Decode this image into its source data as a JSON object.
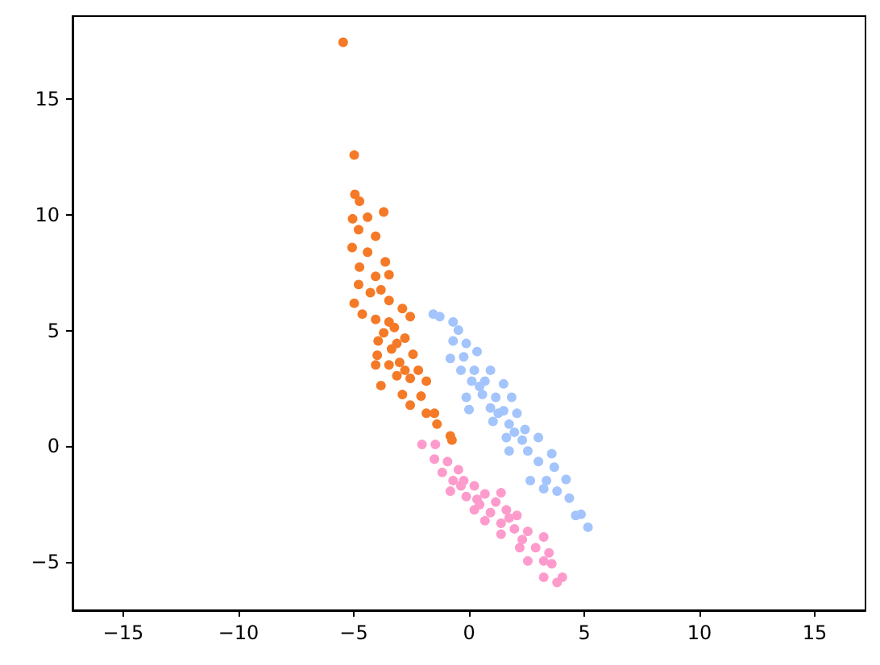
{
  "chart_data": {
    "type": "scatter",
    "marker": "circle",
    "grid": false,
    "xlim": [
      -17.2,
      17.2
    ],
    "ylim": [
      -7.1,
      18.6
    ],
    "xticks": [
      -15,
      -10,
      -5,
      0,
      5,
      10,
      15
    ],
    "yticks": [
      -5,
      0,
      5,
      10,
      15
    ],
    "series": [
      {
        "color": "#a3c4fc",
        "x": [
          -1.55,
          -1.27,
          -0.69,
          -0.46,
          -0.69,
          -0.12,
          0.35,
          -0.81,
          -0.23,
          -0.35,
          0.23,
          0.93,
          0.12,
          0.69,
          1.5,
          -0.12,
          0.58,
          1.16,
          1.85,
          0.0,
          0.93,
          1.5,
          2.08,
          1.04,
          1.74,
          2.43,
          1.62,
          2.31,
          3.01,
          1.74,
          2.55,
          3.59,
          3.01,
          3.7,
          2.66,
          3.36,
          4.21,
          3.82,
          3.24,
          4.35,
          4.63,
          4.86,
          5.16,
          1.27,
          1.97,
          0.46
        ],
        "values": [
          5.71,
          5.6,
          5.37,
          5.02,
          4.55,
          4.44,
          4.09,
          3.79,
          3.86,
          3.28,
          3.28,
          3.28,
          2.81,
          2.81,
          2.69,
          2.11,
          2.23,
          2.11,
          2.11,
          1.58,
          1.65,
          1.53,
          1.42,
          1.07,
          0.95,
          0.72,
          0.37,
          0.26,
          0.37,
          -0.21,
          -0.21,
          -0.33,
          -0.67,
          -0.91,
          -1.49,
          -1.49,
          -1.44,
          -1.95,
          -1.84,
          -2.25,
          -3.0,
          -2.95,
          -3.51,
          1.42,
          0.6,
          2.58
        ]
      },
      {
        "color": "#f47a28",
        "x": [
          -5.46,
          -4.98,
          -4.95,
          -4.75,
          -3.7,
          -5.05,
          -4.4,
          -4.79,
          -4.05,
          -5.07,
          -4.4,
          -3.63,
          -4.75,
          -4.05,
          -3.47,
          -4.79,
          -4.28,
          -3.82,
          -4.98,
          -3.47,
          -2.89,
          -4.63,
          -4.05,
          -2.55,
          -3.24,
          -3.94,
          -2.78,
          -3.36,
          -2.43,
          -3.98,
          -3.01,
          -4.05,
          -2.2,
          -3.13,
          -2.55,
          -3.82,
          -1.85,
          -2.89,
          -2.08,
          -2.55,
          -1.85,
          -1.5,
          -1.39,
          -0.81,
          -0.74,
          -3.47,
          -3.7,
          -3.13,
          -3.47,
          -2.78
        ],
        "values": [
          17.47,
          12.59,
          10.89,
          10.59,
          10.13,
          9.83,
          9.9,
          9.36,
          9.08,
          8.59,
          8.39,
          7.97,
          7.74,
          7.34,
          7.41,
          6.99,
          6.64,
          6.76,
          6.18,
          6.3,
          5.95,
          5.71,
          5.48,
          5.6,
          5.13,
          4.55,
          4.67,
          4.2,
          3.97,
          3.93,
          3.62,
          3.51,
          3.28,
          3.04,
          2.93,
          2.62,
          2.81,
          2.23,
          2.16,
          1.77,
          1.42,
          1.42,
          0.95,
          0.44,
          0.26,
          5.37,
          4.9,
          4.44,
          3.51,
          3.28
        ]
      },
      {
        "color": "#fd9bcc",
        "x": [
          -2.04,
          -1.46,
          -1.5,
          -0.93,
          -1.16,
          -0.46,
          -0.81,
          -0.23,
          -0.69,
          0.23,
          -0.12,
          0.69,
          0.46,
          1.16,
          1.39,
          0.23,
          0.93,
          1.62,
          2.08,
          0.69,
          1.39,
          1.97,
          2.55,
          1.39,
          2.31,
          3.24,
          2.2,
          2.89,
          3.47,
          2.55,
          3.24,
          3.59,
          3.24,
          3.82,
          4.05,
          0.35,
          1.74,
          -0.35
        ],
        "values": [
          0.07,
          0.07,
          -0.56,
          -0.67,
          -1.14,
          -1.02,
          -1.95,
          -1.49,
          -1.49,
          -1.72,
          -2.18,
          -2.07,
          -2.53,
          -2.42,
          -2.02,
          -2.76,
          -2.88,
          -2.76,
          -3.0,
          -3.23,
          -3.34,
          -3.58,
          -3.69,
          -3.81,
          -4.04,
          -3.93,
          -4.39,
          -4.39,
          -4.62,
          -4.97,
          -4.97,
          -5.09,
          -5.67,
          -5.9,
          -5.67,
          -2.3,
          -3.11,
          -1.72
        ]
      }
    ]
  }
}
